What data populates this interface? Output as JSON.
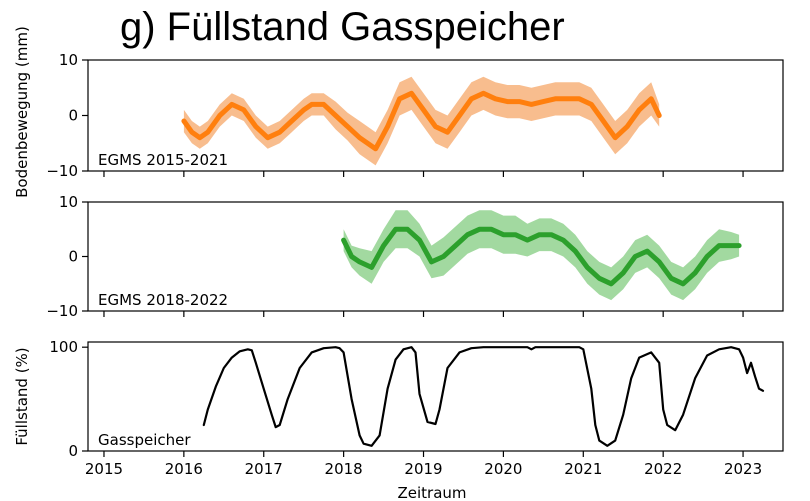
{
  "title": "g)   Füllstand Gasspeicher",
  "chart_data": {
    "type": "line",
    "shared_x": {
      "label": "Zeitraum",
      "range": [
        2014.8,
        2023.5
      ],
      "ticks": [
        2015,
        2016,
        2017,
        2018,
        2019,
        2020,
        2021,
        2022,
        2023
      ],
      "tick_labels": [
        "2015",
        "2016",
        "2017",
        "2018",
        "2019",
        "2020",
        "2021",
        "2022",
        "2023"
      ]
    },
    "shared_ylabel_top": "Bodenbewegung (mm)",
    "panels": [
      {
        "id": "egms-2015-2021",
        "panel_label": "EGMS 2015-2021",
        "ylim": [
          -10,
          10
        ],
        "yticks": [
          -10,
          0,
          10
        ],
        "ytick_labels": [
          "−10",
          "0",
          "10"
        ],
        "color": "#ff7f0e",
        "band_color": "#f7b27a",
        "x": [
          2016.0,
          2016.1,
          2016.2,
          2016.3,
          2016.45,
          2016.6,
          2016.75,
          2016.9,
          2017.05,
          2017.2,
          2017.35,
          2017.5,
          2017.6,
          2017.75,
          2017.9,
          2018.05,
          2018.2,
          2018.4,
          2018.55,
          2018.7,
          2018.85,
          2019.0,
          2019.15,
          2019.3,
          2019.45,
          2019.6,
          2019.75,
          2019.9,
          2020.05,
          2020.2,
          2020.35,
          2020.5,
          2020.65,
          2020.8,
          2020.95,
          2021.1,
          2021.25,
          2021.4,
          2021.55,
          2021.7,
          2021.85,
          2021.95
        ],
        "y": [
          -1,
          -3,
          -4,
          -3,
          0,
          2,
          1,
          -2,
          -4,
          -3,
          -1,
          1,
          2,
          2,
          0,
          -2,
          -4,
          -6,
          -2,
          3,
          4,
          1,
          -2,
          -3,
          0,
          3,
          4,
          3,
          2.5,
          2.5,
          2,
          2.5,
          3,
          3,
          3,
          2,
          -1,
          -4,
          -2,
          1,
          3,
          0
        ],
        "band": [
          2,
          2,
          2,
          2,
          2,
          2,
          2,
          2,
          2,
          2,
          2,
          2,
          2,
          2,
          2.5,
          2.5,
          3,
          3,
          3,
          3,
          3,
          3,
          3,
          3,
          3,
          3,
          3,
          3,
          3,
          3,
          3,
          3,
          3,
          3,
          3,
          3,
          3,
          3,
          3,
          3,
          3,
          2
        ]
      },
      {
        "id": "egms-2018-2022",
        "panel_label": "EGMS 2018-2022",
        "ylim": [
          -10,
          10
        ],
        "yticks": [
          -10,
          0,
          10
        ],
        "ytick_labels": [
          "−10",
          "0",
          "10"
        ],
        "color": "#2ca02c",
        "band_color": "#92d28f",
        "x": [
          2018.0,
          2018.1,
          2018.2,
          2018.35,
          2018.5,
          2018.65,
          2018.8,
          2018.95,
          2019.1,
          2019.25,
          2019.4,
          2019.55,
          2019.7,
          2019.85,
          2020.0,
          2020.15,
          2020.3,
          2020.45,
          2020.6,
          2020.75,
          2020.9,
          2021.05,
          2021.2,
          2021.35,
          2021.5,
          2021.65,
          2021.8,
          2021.95,
          2022.1,
          2022.25,
          2022.4,
          2022.55,
          2022.7,
          2022.85,
          2022.95
        ],
        "y": [
          3,
          0,
          -1,
          -2,
          2,
          5,
          5,
          3,
          -1,
          0,
          2,
          4,
          5,
          5,
          4,
          4,
          3,
          4,
          4,
          3,
          1,
          -2,
          -4,
          -5,
          -3,
          0,
          1,
          -1,
          -4,
          -5,
          -3,
          0,
          2,
          2,
          2
        ],
        "band": [
          2,
          2,
          2.5,
          3,
          3,
          3.5,
          3.5,
          3,
          3,
          3.5,
          3.5,
          3.5,
          3.5,
          3.5,
          3.5,
          3.5,
          3,
          3,
          3,
          3,
          3,
          3,
          3,
          3,
          3,
          3,
          3,
          3,
          3,
          3,
          3,
          3,
          3,
          2.5,
          2
        ]
      },
      {
        "id": "gasspeicher",
        "panel_label": "Gasspeicher",
        "ylabel": "Füllstand (%)",
        "ylim": [
          0,
          105
        ],
        "yticks": [
          0,
          100
        ],
        "ytick_labels": [
          "0",
          "100"
        ],
        "color": "#000000",
        "x": [
          2016.25,
          2016.3,
          2016.4,
          2016.5,
          2016.6,
          2016.7,
          2016.8,
          2016.85,
          2016.9,
          2017.0,
          2017.1,
          2017.15,
          2017.2,
          2017.3,
          2017.45,
          2017.6,
          2017.75,
          2017.9,
          2017.95,
          2018.0,
          2018.1,
          2018.2,
          2018.25,
          2018.35,
          2018.45,
          2018.55,
          2018.65,
          2018.75,
          2018.85,
          2018.9,
          2018.95,
          2019.05,
          2019.15,
          2019.2,
          2019.3,
          2019.45,
          2019.6,
          2019.75,
          2019.9,
          2020.0,
          2020.3,
          2020.35,
          2020.4,
          2020.7,
          2020.95,
          2021.0,
          2021.1,
          2021.15,
          2021.2,
          2021.3,
          2021.4,
          2021.5,
          2021.6,
          2021.7,
          2021.85,
          2021.95,
          2022.0,
          2022.05,
          2022.15,
          2022.25,
          2022.4,
          2022.55,
          2022.7,
          2022.85,
          2022.95,
          2023.0,
          2023.05,
          2023.1,
          2023.15,
          2023.2,
          2023.25
        ],
        "y": [
          25,
          40,
          62,
          80,
          90,
          96,
          98,
          97,
          85,
          60,
          35,
          23,
          25,
          50,
          80,
          95,
          99,
          100,
          99,
          95,
          50,
          15,
          7,
          5,
          15,
          60,
          88,
          98,
          100,
          95,
          55,
          28,
          26,
          40,
          80,
          95,
          99,
          100,
          100,
          100,
          100,
          98,
          100,
          100,
          100,
          98,
          60,
          25,
          10,
          5,
          10,
          35,
          70,
          90,
          95,
          85,
          40,
          25,
          20,
          35,
          70,
          92,
          98,
          100,
          98,
          90,
          75,
          85,
          72,
          60,
          58
        ]
      }
    ]
  }
}
